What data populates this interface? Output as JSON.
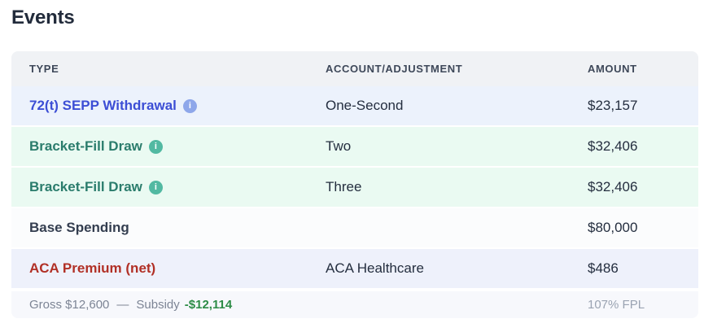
{
  "page": {
    "title": "Events"
  },
  "icons": {
    "info": "i"
  },
  "colors": {
    "sepp_blue": "#3c4ed5",
    "sepp_row_bg": "#ecf2fc",
    "sepp_info_icon": "#8ea7ea",
    "bracket_green": "#2a7c6c",
    "bracket_row_bg": "#eafaf2",
    "bracket_info_icon": "#52b9a2",
    "base_text": "#343e50",
    "aca_red": "#b13026",
    "aca_row_bg": "#eef1fb",
    "header_bg": "#f0f2f5",
    "footer_bg": "#f7f8fc",
    "subsidy_green": "#2d8c46"
  },
  "table": {
    "headers": [
      "TYPE",
      "ACCOUNT/ADJUSTMENT",
      "AMOUNT"
    ],
    "rows": [
      {
        "type": "72(t) SEPP Withdrawal",
        "has_info": true,
        "account": "One-Second",
        "amount": "$23,157"
      },
      {
        "type": "Bracket-Fill Draw",
        "has_info": true,
        "account": "Two",
        "amount": "$32,406"
      },
      {
        "type": "Bracket-Fill Draw",
        "has_info": true,
        "account": "Three",
        "amount": "$32,406"
      },
      {
        "type": "Base Spending",
        "has_info": false,
        "account": "",
        "amount": "$80,000"
      },
      {
        "type": "ACA Premium (net)",
        "has_info": false,
        "account": "ACA Healthcare",
        "amount": "$486"
      }
    ],
    "footer": {
      "gross": "Gross $12,600",
      "separator": "—",
      "subsidy_label": "Subsidy",
      "subsidy_value": "-$12,114",
      "fpl": "107% FPL"
    }
  }
}
